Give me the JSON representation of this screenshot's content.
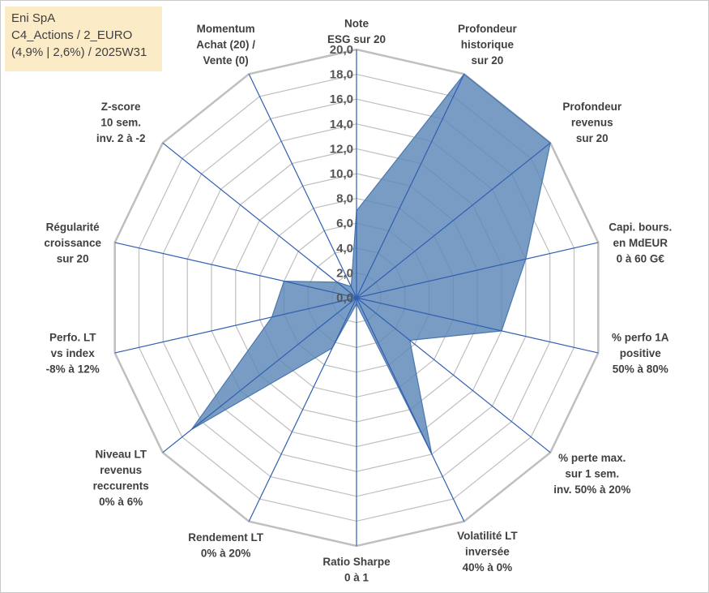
{
  "info_box": {
    "line1": "Eni SpA",
    "line2": "C4_Actions / 2_EURO",
    "line3": "(4,9% | 2,6%) / 2025W31"
  },
  "colors": {
    "fill": "#5b86b8",
    "stroke": "#4a78ad",
    "grid": "#bfbfbf",
    "spoke": "#2f5fb0"
  },
  "chart_data": {
    "type": "radar",
    "rmin": 0,
    "rmax": 20,
    "ticks": [
      "0,0",
      "2,0",
      "4,0",
      "6,0",
      "8,0",
      "10,0",
      "12,0",
      "14,0",
      "16,0",
      "18,0",
      "20,0"
    ],
    "axes": [
      {
        "label": [
          "Note",
          "ESG sur 20"
        ],
        "value": 7.0
      },
      {
        "label": [
          "Profondeur",
          "historique",
          "sur 20"
        ],
        "value": 20.0
      },
      {
        "label": [
          "Profondeur",
          "revenus",
          "sur 20"
        ],
        "value": 20.0
      },
      {
        "label": [
          "Capi. bours.",
          "en MdEUR",
          "0 à 60 G€"
        ],
        "value": 14.0
      },
      {
        "label": [
          "% perfo 1A",
          "positive",
          "50% à 80%"
        ],
        "value": 12.0
      },
      {
        "label": [
          "% perte max.",
          "sur 1 sem.",
          "inv. 50% à 20%"
        ],
        "value": 5.5
      },
      {
        "label": [
          "Volatilité LT",
          "inversée",
          "40% à 0%"
        ],
        "value": 14.0
      },
      {
        "label": [
          "Ratio Sharpe",
          "0 à 1"
        ],
        "value": 0.5
      },
      {
        "label": [
          "Rendement LT",
          "0% à 20%"
        ],
        "value": 4.5
      },
      {
        "label": [
          "Niveau LT",
          "revenus",
          "reccurents",
          "0% à 6%"
        ],
        "value": 17.0
      },
      {
        "label": [
          "Perfo. LT",
          "vs index",
          "-8% à 12%"
        ],
        "value": 7.0
      },
      {
        "label": [
          "Régularité",
          "croissance",
          "sur 20"
        ],
        "value": 6.0
      },
      {
        "label": [
          "Z-score",
          "10 sem.",
          "inv. 2 à -2"
        ],
        "value": 2.0
      },
      {
        "label": [
          "Momentum",
          "Achat (20) /",
          "Vente (0)"
        ],
        "value": 1.0
      }
    ]
  }
}
